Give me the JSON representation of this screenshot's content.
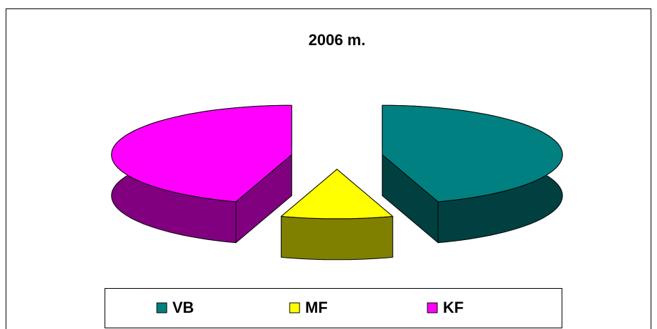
{
  "chart_data": {
    "type": "pie",
    "title": "2006 m.",
    "categories": [
      "VB",
      "MF",
      "KF"
    ],
    "values": [
      45,
      10,
      45
    ],
    "colors": [
      "#008080",
      "#ffff00",
      "#ff00ff"
    ],
    "side_colors": [
      "#004040",
      "#808000",
      "#800080"
    ],
    "legend": "bottom"
  }
}
